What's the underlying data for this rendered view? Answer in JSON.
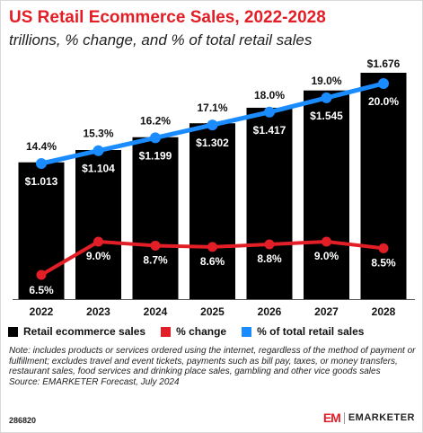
{
  "title": "US Retail Ecommerce Sales, 2022-2028",
  "subtitle": "trillions, % change, and % of total retail sales",
  "colors": {
    "title": "#e21e26",
    "bars": "#000000",
    "change_line": "#e21e26",
    "share_line": "#1a8cff"
  },
  "chart_data": {
    "type": "bar",
    "categories": [
      "2022",
      "2023",
      "2024",
      "2025",
      "2026",
      "2027",
      "2028"
    ],
    "series": [
      {
        "name": "Retail ecommerce sales",
        "type": "bar",
        "values": [
          1.013,
          1.104,
          1.199,
          1.302,
          1.417,
          1.545,
          1.676
        ],
        "labels": [
          "$1.013",
          "$1.104",
          "$1.199",
          "$1.302",
          "$1.417",
          "$1.545",
          "$1.676"
        ]
      },
      {
        "name": "% change",
        "type": "line",
        "values": [
          6.5,
          9.0,
          8.7,
          8.6,
          8.8,
          9.0,
          8.5
        ],
        "labels": [
          "6.5%",
          "9.0%",
          "8.7%",
          "8.6%",
          "8.8%",
          "9.0%",
          "8.5%"
        ]
      },
      {
        "name": "% of total retail sales",
        "type": "line",
        "values": [
          14.4,
          15.3,
          16.2,
          17.1,
          18.0,
          19.0,
          20.0
        ],
        "labels": [
          "14.4%",
          "15.3%",
          "16.2%",
          "17.1%",
          "18.0%",
          "19.0%",
          "20.0%"
        ]
      }
    ],
    "grid": false,
    "legend_position": "bottom"
  },
  "legend": [
    "Retail ecommerce sales",
    "% change",
    "% of total retail sales"
  ],
  "note": "Note: includes products or services ordered using the internet, regardless of the method of payment or fulfillment; excludes travel and event tickets, payments such as bill pay, taxes, or money transfers, restaurant sales, food services and drinking place sales, gambling and other vice goods sales",
  "source": "Source: EMARKETER Forecast, July 2024",
  "chart_id": "286820",
  "brand": {
    "mark": "EM",
    "name": "EMARKETER"
  }
}
